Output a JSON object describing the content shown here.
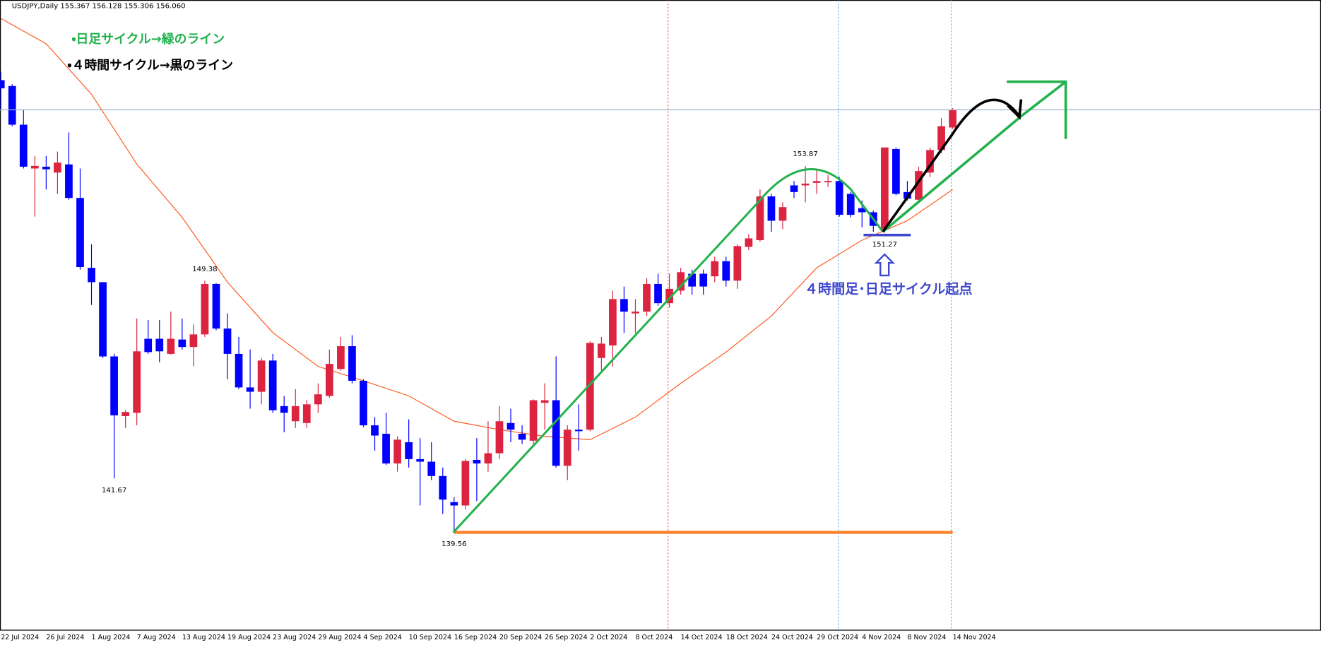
{
  "chart_data": {
    "type": "candlestick",
    "title": "USDJPY,Daily  155.367 156.128 155.306 156.060",
    "categories": [
      "22 Jul 2024",
      null,
      null,
      null,
      "26 Jul 2024",
      null,
      null,
      null,
      "1 Aug 2024",
      null,
      null,
      null,
      "7 Aug 2024",
      null,
      null,
      null,
      "13 Aug 2024",
      null,
      null,
      null,
      "19 Aug 2024",
      null,
      null,
      null,
      "23 Aug 2024",
      null,
      null,
      null,
      "29 Aug 2024",
      null,
      null,
      null,
      "4 Sep 2024",
      null,
      null,
      null,
      "10 Sep 2024",
      null,
      null,
      null,
      "16 Sep 2024",
      null,
      null,
      null,
      "20 Sep 2024",
      null,
      null,
      null,
      "26 Sep 2024",
      null,
      null,
      null,
      "2 Oct 2024",
      null,
      null,
      null,
      "8 Oct 2024",
      null,
      null,
      null,
      "14 Oct 2024",
      null,
      null,
      null,
      "18 Oct 2024",
      null,
      null,
      null,
      "24 Oct 2024",
      null,
      null,
      null,
      "29 Oct 2024",
      null,
      null,
      null,
      "4 Nov 2024",
      null,
      null,
      null,
      "8 Nov 2024",
      null,
      null,
      null,
      "14 Nov 2024"
    ],
    "open": [
      157.22,
      156.99,
      155.48,
      153.77,
      153.84,
      153.61,
      153.93,
      152.62,
      149.89,
      149.33,
      146.43,
      144.1,
      144.23,
      147.12,
      147.12,
      146.53,
      147.09,
      146.8,
      147.29,
      149.26,
      147.52,
      146.53,
      145.22,
      145.05,
      146.27,
      144.49,
      143.9,
      143.83,
      144.56,
      144.89,
      145.94,
      146.83,
      145.48,
      143.74,
      143.41,
      142.25,
      143.08,
      142.42,
      142.32,
      141.76,
      140.74,
      140.61,
      142.39,
      142.25,
      142.65,
      143.83,
      143.41,
      143.14,
      144.62,
      144.72,
      142.16,
      143.57,
      143.57,
      146.37,
      146.86,
      148.67,
      148.11,
      148.18,
      149.26,
      148.51,
      149.0,
      149.66,
      149.66,
      149.56,
      150.15,
      149.39,
      150.71,
      150.97,
      152.68,
      151.73,
      153.11,
      153.11,
      153.21,
      153.24,
      153.28,
      152.78,
      152.22,
      152.06,
      151.4,
      154.53,
      152.85,
      152.55,
      153.61,
      154.49,
      155.37
    ],
    "high": [
      157.55,
      157.06,
      156.07,
      154.26,
      154.26,
      154.43,
      155.18,
      153.77,
      150.81,
      149.33,
      146.53,
      144.33,
      147.91,
      147.85,
      147.85,
      148.18,
      147.91,
      147.68,
      149.38,
      149.3,
      148.11,
      147.19,
      146.7,
      146.37,
      146.53,
      144.89,
      145.15,
      144.72,
      145.38,
      146.7,
      147.19,
      147.26,
      145.54,
      144.06,
      144.23,
      143.31,
      143.97,
      143.24,
      143.08,
      142.09,
      140.94,
      142.42,
      143.24,
      143.9,
      144.49,
      144.39,
      143.74,
      144.75,
      145.38,
      146.43,
      143.74,
      144.56,
      147.02,
      147.19,
      149.0,
      149.16,
      148.67,
      149.49,
      149.66,
      149.66,
      149.89,
      149.82,
      149.82,
      150.32,
      150.32,
      150.81,
      151.2,
      152.95,
      152.78,
      152.45,
      153.28,
      153.87,
      153.77,
      153.51,
      153.44,
      152.85,
      152.52,
      152.13,
      154.59,
      154.59,
      153.28,
      153.84,
      154.59,
      155.74,
      156.13
    ],
    "low": [
      156.07,
      155.42,
      153.77,
      151.89,
      152.95,
      152.78,
      152.55,
      149.82,
      148.44,
      146.37,
      141.67,
      143.64,
      143.74,
      146.53,
      146.2,
      146.5,
      146.7,
      146.04,
      147.19,
      147.45,
      145.54,
      145.15,
      144.39,
      144.56,
      144.23,
      143.47,
      143.64,
      143.64,
      144.23,
      144.82,
      145.87,
      145.38,
      143.67,
      142.75,
      142.19,
      141.93,
      142.09,
      140.61,
      141.6,
      140.28,
      139.56,
      140.45,
      140.78,
      141.93,
      142.42,
      143.08,
      143.01,
      142.91,
      143.57,
      142.09,
      141.6,
      142.75,
      143.51,
      145.87,
      146.04,
      147.35,
      147.35,
      148.01,
      148.41,
      148.34,
      148.84,
      148.84,
      148.84,
      149.33,
      149.16,
      149.07,
      150.58,
      150.91,
      151.3,
      151.4,
      152.62,
      152.45,
      152.78,
      153.05,
      151.89,
      151.86,
      151.47,
      151.3,
      151.27,
      152.72,
      152.52,
      152.45,
      153.44,
      154.36,
      155.31
    ],
    "close": [
      156.9,
      155.48,
      153.84,
      153.87,
      153.74,
      154.0,
      152.62,
      149.92,
      149.33,
      146.43,
      144.13,
      144.26,
      146.63,
      146.6,
      146.63,
      147.12,
      146.8,
      147.29,
      149.26,
      147.52,
      146.53,
      145.22,
      145.05,
      146.27,
      144.33,
      144.23,
      144.49,
      144.56,
      144.95,
      146.14,
      146.83,
      145.48,
      143.74,
      143.34,
      142.25,
      143.18,
      142.42,
      142.32,
      141.76,
      140.84,
      140.61,
      142.35,
      142.25,
      142.65,
      143.9,
      143.57,
      143.18,
      144.72,
      144.72,
      142.16,
      143.57,
      143.51,
      146.96,
      146.93,
      148.67,
      148.18,
      148.18,
      149.26,
      148.51,
      149.07,
      149.72,
      149.16,
      149.16,
      150.15,
      149.39,
      150.74,
      151.04,
      152.68,
      151.73,
      152.26,
      152.85,
      153.18,
      153.28,
      153.28,
      151.96,
      151.96,
      152.06,
      151.53,
      154.59,
      152.78,
      152.59,
      153.67,
      154.49,
      155.42,
      156.06
    ],
    "up_color": "#dc2440",
    "down_color": "#0000ff",
    "ylim": [
      135.74,
      160.35
    ],
    "ma": {
      "type": "line",
      "color": "#ff5a1f",
      "x": [
        0,
        4,
        8,
        12,
        16,
        20,
        24,
        28,
        32,
        36,
        40,
        44,
        48,
        52,
        56,
        60,
        64,
        68,
        72,
        76,
        80,
        84
      ],
      "values": [
        159.63,
        158.64,
        156.67,
        153.94,
        151.86,
        149.33,
        147.36,
        146.04,
        145.48,
        144.89,
        143.9,
        143.57,
        143.31,
        143.18,
        144.06,
        145.38,
        146.6,
        148.01,
        149.89,
        150.97,
        151.73,
        152.95
      ]
    },
    "price_labels": [
      141.67,
      149.38,
      153.87,
      151.27,
      139.56
    ],
    "support_color": "#ff7f27",
    "price_line_color": "#9fb6cc",
    "annotations": [
      {
        "text": "・日足サイクル→緑のライン",
        "color": "#22b14c"
      },
      {
        "text": "・４時間サイクル→黒のライン",
        "color": "#000000"
      },
      {
        "text": "４時間足･日足サイクル起点",
        "color": "#3f48cc"
      }
    ]
  }
}
